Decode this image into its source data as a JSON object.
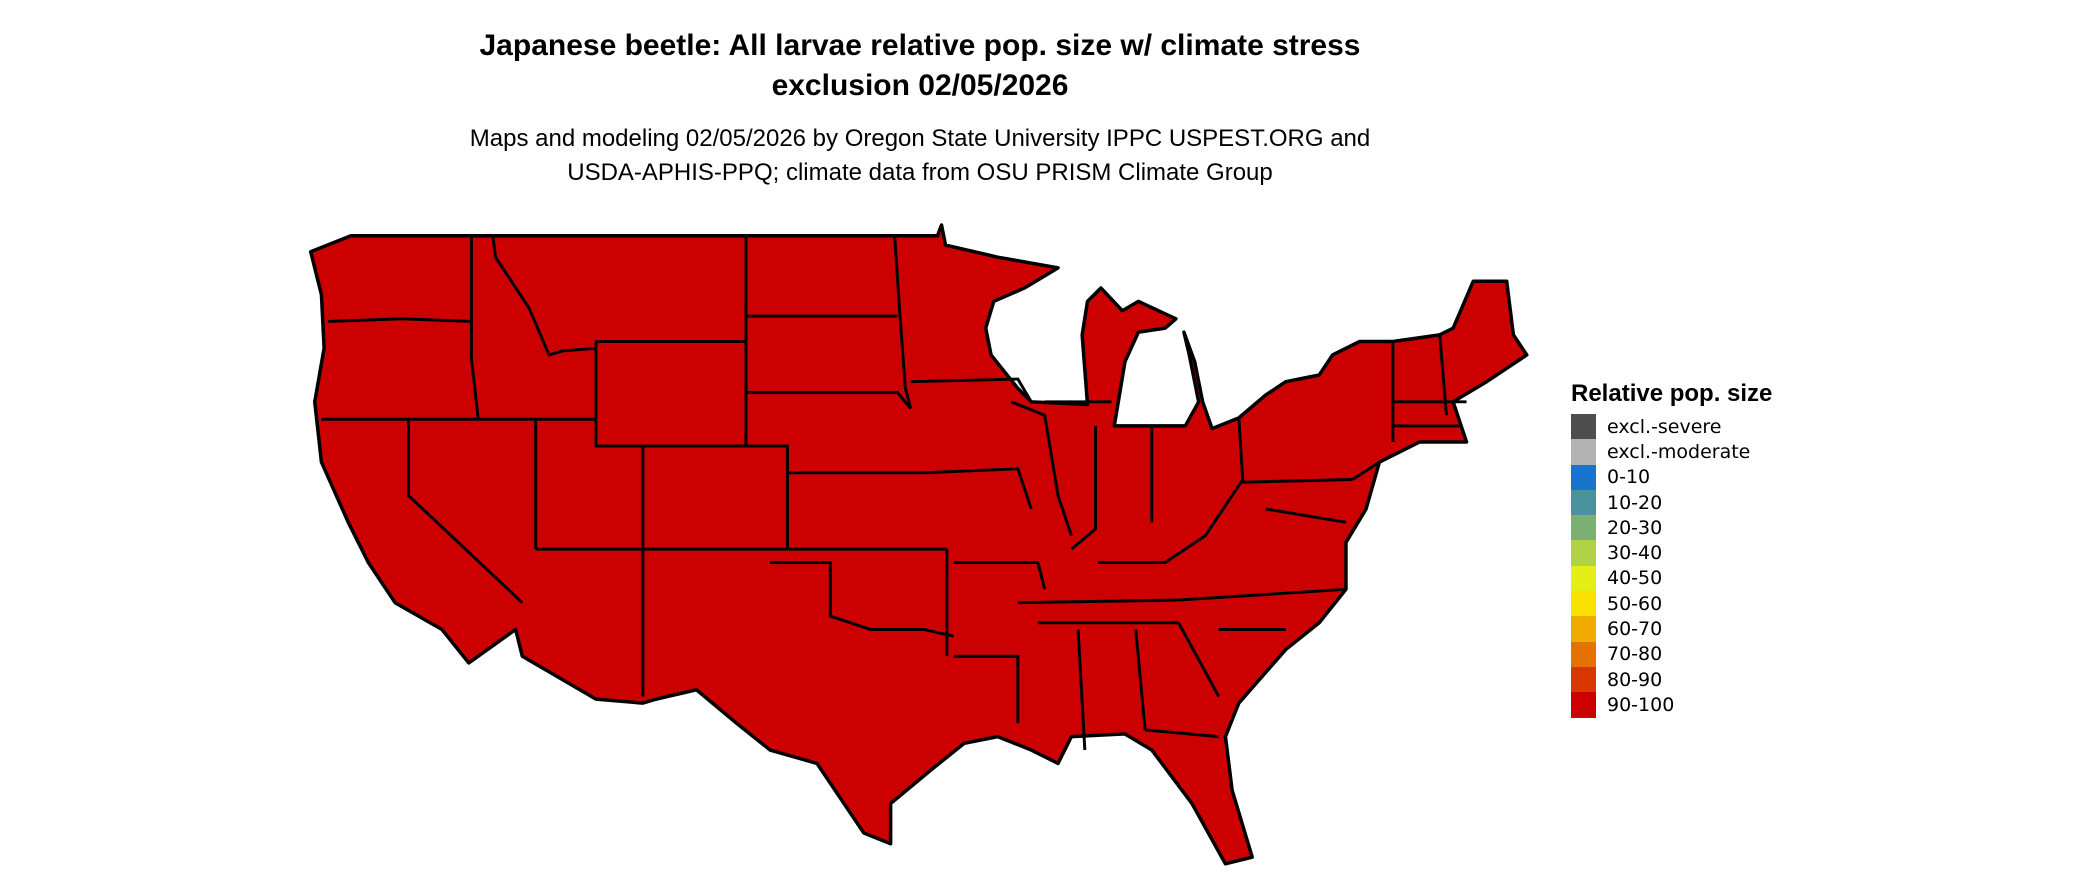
{
  "title_line1": "Japanese beetle: All larvae relative pop. size w/ climate stress",
  "title_line2": "exclusion 02/05/2026",
  "subtitle_line1": "Maps and modeling 02/05/2026 by Oregon State University IPPC USPEST.ORG and",
  "subtitle_line2": "USDA-APHIS-PPQ; climate data from OSU PRISM Climate Group",
  "map": {
    "region": "Contiguous United States",
    "fill_color": "#CC0000",
    "fill_category": "90-100",
    "border_color": "#000000"
  },
  "legend": {
    "title": "Relative pop. size",
    "items": [
      {
        "label": "excl.-severe",
        "color": "#4D4D4D"
      },
      {
        "label": "excl.-moderate",
        "color": "#B3B3B3"
      },
      {
        "label": "0-10",
        "color": "#1874CD"
      },
      {
        "label": "10-20",
        "color": "#4A939E"
      },
      {
        "label": "20-30",
        "color": "#7CB073"
      },
      {
        "label": "30-40",
        "color": "#B2D147"
      },
      {
        "label": "40-50",
        "color": "#E5EE16"
      },
      {
        "label": "50-60",
        "color": "#F8E000"
      },
      {
        "label": "60-70",
        "color": "#F0AA00"
      },
      {
        "label": "70-80",
        "color": "#E47200"
      },
      {
        "label": "80-90",
        "color": "#D83800"
      },
      {
        "label": "90-100",
        "color": "#CC0000"
      }
    ]
  }
}
